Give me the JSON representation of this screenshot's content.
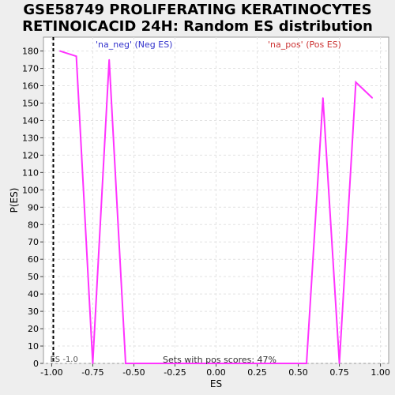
{
  "chart_data": {
    "type": "line",
    "title_lines": [
      "GSE58749 PROLIFERATING KERATINOCYTES",
      "RETINOICACID 24H: Random ES distribution"
    ],
    "xlabel": "ES",
    "ylabel": "P(ES)",
    "xlim": [
      -1.05,
      1.05
    ],
    "ylim": [
      0,
      188
    ],
    "x_ticks": [
      -1.0,
      -0.75,
      -0.5,
      -0.25,
      0.0,
      0.25,
      0.5,
      0.75,
      1.0
    ],
    "x_tick_labels": [
      "-1.00",
      "-0.75",
      "-0.50",
      "-0.25",
      "0.00",
      "0.25",
      "0.50",
      "0.75",
      "1.00"
    ],
    "y_ticks": [
      0,
      10,
      20,
      30,
      40,
      50,
      60,
      70,
      80,
      90,
      100,
      110,
      120,
      130,
      140,
      150,
      160,
      170,
      180
    ],
    "grid": true,
    "series": [
      {
        "color": "#ff33ff",
        "x": [
          -0.95,
          -0.85,
          -0.75,
          -0.65,
          -0.55,
          -0.45,
          -0.35,
          -0.25,
          -0.15,
          -0.05,
          0.05,
          0.15,
          0.25,
          0.35,
          0.45,
          0.55,
          0.65,
          0.75,
          0.85,
          0.95
        ],
        "y": [
          180,
          177,
          0,
          175,
          0,
          0,
          0,
          0,
          0,
          0,
          0,
          0,
          0,
          0,
          0,
          0,
          153,
          0,
          162,
          153
        ]
      }
    ],
    "annotations": {
      "neg_label": "'na_neg' (Neg ES)",
      "neg_color": "#3333cc",
      "pos_label": "'na_pos' (Pos ES)",
      "pos_color": "#cc3333",
      "pos_scores": "Sets with pos scores: 47%",
      "es_marker_label": "ES -1.0",
      "es_marker_value": -0.99
    }
  }
}
